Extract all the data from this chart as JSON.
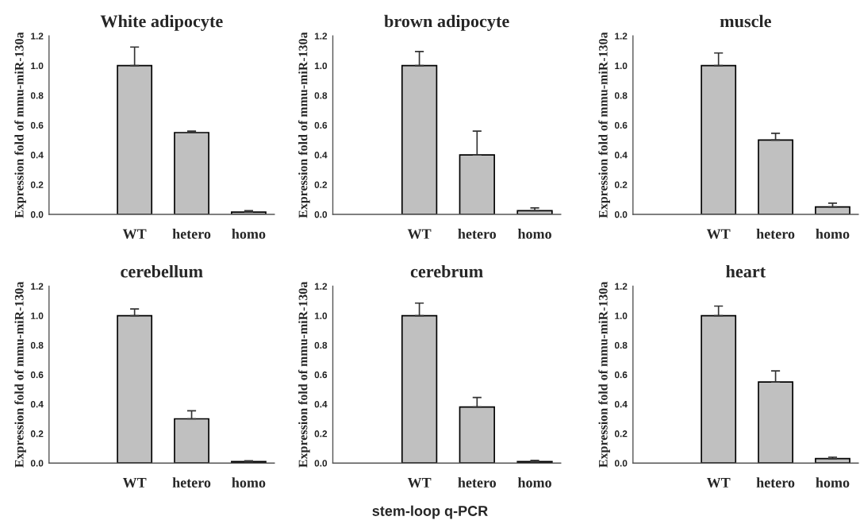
{
  "chart_data": [
    {
      "type": "bar",
      "title": "White adipocyte",
      "ylabel": "Expression fold of mmu-miR-130a",
      "categories": [
        null,
        "WT",
        "hetero",
        "homo"
      ],
      "values": [
        null,
        1.0,
        0.55,
        0.015
      ],
      "errors": [
        null,
        [
          1.0,
          1.125
        ],
        [
          0.55,
          0.56
        ],
        [
          0.015,
          0.025
        ]
      ],
      "color": "#c0c0c0",
      "ylim": [
        0,
        1.2
      ],
      "yticks": [
        {
          "value": 0,
          "label": "0.0"
        },
        {
          "value": 0.2,
          "label": "0.2"
        },
        {
          "value": 0.4,
          "label": "0.4"
        },
        {
          "value": 0.6,
          "label": "0.6"
        },
        {
          "value": 0.8,
          "label": "0.8"
        },
        {
          "value": 1,
          "label": "1.0"
        },
        {
          "value": 1.2,
          "label": "1.2"
        }
      ],
      "grid": false,
      "legend": false
    },
    {
      "type": "bar",
      "title": "brown adipocyte",
      "ylabel": "Expression fold of mmu-miR-130a",
      "categories": [
        null,
        "WT",
        "hetero",
        "homo"
      ],
      "values": [
        null,
        1.0,
        0.4,
        0.025
      ],
      "errors": [
        null,
        [
          1.0,
          1.095
        ],
        [
          0.4,
          0.56
        ],
        [
          0.025,
          0.043
        ]
      ],
      "color": "#c0c0c0",
      "ylim": [
        0,
        1.2
      ],
      "yticks": [
        {
          "value": 0,
          "label": "0.0"
        },
        {
          "value": 0.2,
          "label": "0.2"
        },
        {
          "value": 0.4,
          "label": "0.4"
        },
        {
          "value": 0.6,
          "label": "0.6"
        },
        {
          "value": 0.8,
          "label": "0.8"
        },
        {
          "value": 1,
          "label": "1.0"
        },
        {
          "value": 1.2,
          "label": "1.2"
        }
      ],
      "grid": false,
      "legend": false
    },
    {
      "type": "bar",
      "title": "muscle",
      "ylabel": "Expression fold of mmu-miR-130a",
      "categories": [
        null,
        "WT",
        "hetero",
        "homo"
      ],
      "values": [
        null,
        1.0,
        0.5,
        0.05
      ],
      "errors": [
        null,
        [
          1.0,
          1.085
        ],
        [
          0.5,
          0.545
        ],
        [
          0.05,
          0.075
        ]
      ],
      "color": "#c0c0c0",
      "ylim": [
        0,
        1.2
      ],
      "yticks": [
        {
          "value": 0,
          "label": "0.0"
        },
        {
          "value": 0.2,
          "label": "0.2"
        },
        {
          "value": 0.4,
          "label": "0.4"
        },
        {
          "value": 0.6,
          "label": "0.6"
        },
        {
          "value": 0.8,
          "label": "0.8"
        },
        {
          "value": 1,
          "label": "1.0"
        },
        {
          "value": 1.2,
          "label": "1.2"
        }
      ],
      "grid": false,
      "legend": false
    },
    {
      "type": "bar",
      "title": "cerebellum",
      "ylabel": "Expression fold of mmu-miR-130a",
      "categories": [
        null,
        "WT",
        "hetero",
        "homo"
      ],
      "values": [
        null,
        1.0,
        0.3,
        0.01
      ],
      "errors": [
        null,
        [
          1.0,
          1.045
        ],
        [
          0.3,
          0.355
        ],
        [
          0.01,
          0.015
        ]
      ],
      "color": "#c0c0c0",
      "ylim": [
        0,
        1.2
      ],
      "yticks": [
        {
          "value": 0,
          "label": "0.0"
        },
        {
          "value": 0.2,
          "label": "0.2"
        },
        {
          "value": 0.4,
          "label": "0.4"
        },
        {
          "value": 0.6,
          "label": "0.6"
        },
        {
          "value": 0.8,
          "label": "0.8"
        },
        {
          "value": 1,
          "label": "1.0"
        },
        {
          "value": 1.2,
          "label": "1.2"
        }
      ],
      "grid": false,
      "legend": false
    },
    {
      "type": "bar",
      "title": "cerebrum",
      "ylabel": "Expression fold of mmu-miR-130a",
      "categories": [
        null,
        "WT",
        "hetero",
        "homo"
      ],
      "values": [
        null,
        1.0,
        0.38,
        0.01
      ],
      "errors": [
        null,
        [
          1.0,
          1.085
        ],
        [
          0.38,
          0.445
        ],
        [
          0.01,
          0.018
        ]
      ],
      "color": "#c0c0c0",
      "ylim": [
        0,
        1.2
      ],
      "yticks": [
        {
          "value": 0,
          "label": "0.0"
        },
        {
          "value": 0.2,
          "label": "0.2"
        },
        {
          "value": 0.4,
          "label": "0.4"
        },
        {
          "value": 0.6,
          "label": "0.6"
        },
        {
          "value": 0.8,
          "label": "0.8"
        },
        {
          "value": 1,
          "label": "1.0"
        },
        {
          "value": 1.2,
          "label": "1.2"
        }
      ],
      "grid": false,
      "legend": false
    },
    {
      "type": "bar",
      "title": "heart",
      "ylabel": "Expression fold of mmu-miR-130a",
      "categories": [
        null,
        "WT",
        "hetero",
        "homo"
      ],
      "values": [
        null,
        1.0,
        0.55,
        0.03
      ],
      "errors": [
        null,
        [
          1.0,
          1.065
        ],
        [
          0.55,
          0.625
        ],
        [
          0.03,
          0.04
        ]
      ],
      "color": "#c0c0c0",
      "ylim": [
        0,
        1.2
      ],
      "yticks": [
        {
          "value": 0,
          "label": "0.0"
        },
        {
          "value": 0.2,
          "label": "0.2"
        },
        {
          "value": 0.4,
          "label": "0.4"
        },
        {
          "value": 0.6,
          "label": "0.6"
        },
        {
          "value": 0.8,
          "label": "0.8"
        },
        {
          "value": 1,
          "label": "1.0"
        },
        {
          "value": 1.2,
          "label": "1.2"
        }
      ],
      "grid": false,
      "legend": false,
      "annotations": [
        "stem-loop q-PCR"
      ]
    }
  ]
}
